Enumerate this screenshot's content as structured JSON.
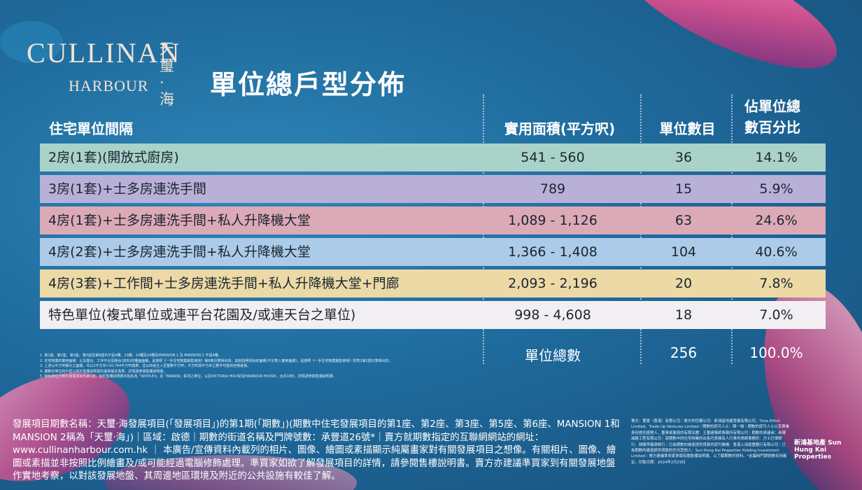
{
  "header": {
    "logo_en": "CULLINAN",
    "logo_sub": "HARBOUR",
    "logo_cn": "天璽·海",
    "title": "單位總戶型分佈"
  },
  "table": {
    "columns": [
      "住宅單位間隔",
      "實用面積(平方呎)",
      "單位數目",
      "佔單位總數百分比"
    ],
    "rows": [
      [
        "2房(1套)(開放式廚房)",
        "541 - 560",
        36,
        "14.1%"
      ],
      [
        "3房(1套)+士多房連洗手間",
        "789",
        15,
        "5.9%"
      ],
      [
        "4房(1套)+士多房連洗手間+私人升降機大堂",
        "1,089 - 1,126",
        63,
        "24.6%"
      ],
      [
        "4房(2套)+士多房連洗手間+私人升降機大堂",
        "1,366 - 1,408",
        104,
        "40.6%"
      ],
      [
        "4房(3套)+工作間+士多房連洗手間+私人升降機大堂+門廊",
        "2,093 - 2,196",
        20,
        "7.8%"
      ],
      [
        "特色單位(複式單位或連平台花園及/或連天台之單位)",
        "998 - 4,608",
        18,
        "7.0%"
      ]
    ],
    "total": {
      "label": "單位總數",
      "units": 256,
      "percent": "100.0%"
    }
  },
  "footnotes": [
    "1. 第1座、第2座、第3座、第5座及第6座均不設4樓、13樓、14樓及24樓及MANSION 1 及 MANSION 2 不設4樓。",
    "2. 住宅物業的實用面積：以及露台、工作平台及陽台(如有)的樓面面積，是按照《一手住宅物業銷售條例》第8條計算得出的。其他指明項目的面積(不計算入實用面積)，是按照《一手住宅物業銷售條例》附表2第2部計算得出的。",
    "3. 上述以平方呎顯示之面積，均以1平方米=10.764平方呎換算，並以四捨五入至整數平方呎，平方呎與平方米之數字可能有些微差異。",
    "4. 期數的單位和戶型以其於售樓說明書的最新版本為準，詳情請參閱售樓說明書。",
    "5. 特色單位分佈於發展項目內第1座，如於售樓說明書中指名為「SKYPLEX」及「MANOR」系列之單位，以及VICTORIA HOUSE及HARBOUR HOUSE，合共18伙，詳情請參閱售樓說明書。"
  ],
  "disclaimer": "發展項目期數名稱：天璽·海發展項目(「發展項目」)的第1期(「期數」)(期數中住宅發展項目的第1座、第2座、第3座、第5座、第6座、MANSION 1和MANSION 2稱為「天璽·海」)｜區域：啟德｜期數的街道名稱及門牌號數：承豐道26號*｜賣方就期數指定的互聯網網站的網址：www.cullinanharbour.com.hk ｜ 本廣告/宣傳資料內載列的相片、圖像、繪圖或素描顯示純屬畫家對有關發展項目之想像。有關相片、圖像、繪圖或素描並非按照比例繪畫及/或可能經過電腦修飾處理。準買家如欲了解發展項目的詳情，請參閱售樓說明書。賣方亦建議準買家到有關發展地盤作實地考察，以對該發展地盤、其周邊地區環境及附近的公共設施有較佳了解。",
  "legal_notice": "賣方：寶豪（香港）有限公司｜賣方的控權公司：新鴻基地產發展有限公司、Time Effort Limited、Trade Up Ventures Limited｜期數的認可人士：陳一鳴｜期數的認可人士以其專業身份擔任經營人、董事或僱員的有限法團：王董建築師事務所有限公司｜期數的承建商：新輝城建工程有限公司｜就期數中的住宅物業的出售代表擁有人行事的律師事務所：孖士打律師行、胡關李羅律師行｜已為期數的建造提供貸款的認可機構：香港上海滙豐銀行有限公司｜已為期數的建造提供貸款的任何其他人：Sun Hung Kai Properties Holding Investment Limited｜賣方建議準買家參閱有關售樓說明書，以了解期數的資料。*此臨時門牌號數有待確定。印製日期：2024年2月29日",
  "developer_logo": "新鴻基地產 Sun Hung Kai Properties"
}
